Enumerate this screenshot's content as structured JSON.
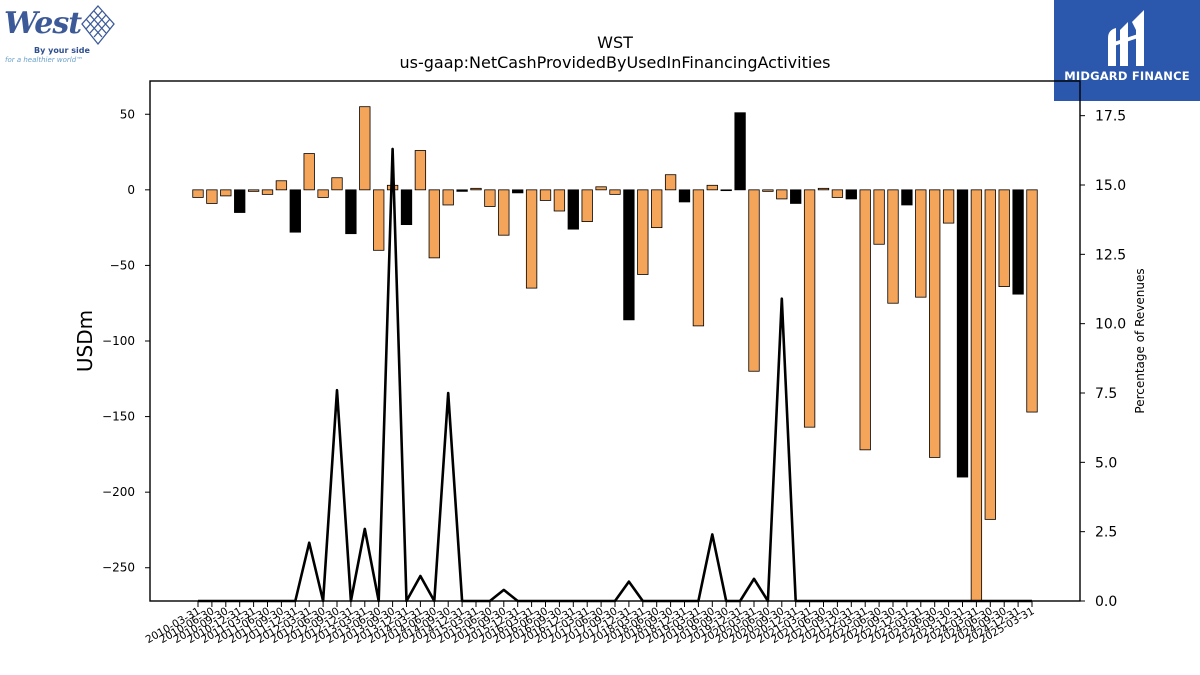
{
  "logos": {
    "west": {
      "word": "West",
      "tagline1": "By your side",
      "tagline2": "for a healthier world™"
    },
    "midgard": {
      "word": "MIDGARD FINANCE"
    }
  },
  "colors": {
    "positive_bar": "#f5a55a",
    "negative_bar": "#000000",
    "line": "#000000",
    "midgard_bg": "#2b57ad"
  },
  "chart_data": {
    "type": "bar",
    "title": "WST",
    "subtitle": "us-gaap:NetCashProvidedByUsedInFinancingActivities",
    "ylabel": "USDm",
    "y2label": "Percentage of Revenues",
    "ylim": [
      -272,
      72
    ],
    "y2lim": [
      0,
      18.75
    ],
    "yticks": [
      50,
      0,
      -50,
      -100,
      -150,
      -200,
      -250
    ],
    "ytick_labels": [
      "50",
      "0",
      "−50",
      "−100",
      "−150",
      "−200",
      "−250"
    ],
    "y2ticks": [
      0,
      2.5,
      5,
      7.5,
      10,
      12.5,
      15,
      17.5
    ],
    "y2tick_labels": [
      "0.0",
      "2.5",
      "5.0",
      "7.5",
      "10.0",
      "12.5",
      "15.0",
      "17.5"
    ],
    "xtick_labels": [
      "2010-03-31",
      "2010-06-30",
      "2010-09-30",
      "2010-12-31",
      "2011-03-31",
      "2011-06-30",
      "2011-09-30",
      "2011-12-31",
      "2012-03-31",
      "2012-06-30",
      "2012-09-30",
      "2012-12-31",
      "2013-03-31",
      "2013-06-30",
      "2013-09-30",
      "2013-12-31",
      "2014-03-31",
      "2014-06-30",
      "2014-09-30",
      "2014-12-31",
      "2015-03-31",
      "2015-06-30",
      "2015-09-30",
      "2015-12-31",
      "2016-03-31",
      "2016-06-30",
      "2016-09-30",
      "2016-12-31",
      "2017-03-31",
      "2017-06-30",
      "2017-09-30",
      "2017-12-31",
      "2018-03-31",
      "2018-06-30",
      "2018-09-30",
      "2018-12-31",
      "2019-03-31",
      "2019-06-30",
      "2019-09-30",
      "2019-12-31",
      "2020-03-31",
      "2020-06-30",
      "2020-09-30",
      "2020-12-31",
      "2021-03-31",
      "2021-06-30",
      "2021-09-30",
      "2021-12-31",
      "2022-03-31",
      "2022-06-30",
      "2022-09-30",
      "2022-12-31",
      "2023-03-31",
      "2023-06-30",
      "2023-09-30",
      "2023-12-31",
      "2024-03-31",
      "2024-06-30",
      "2024-09-30",
      "2024-12-31",
      "2025-03-31"
    ],
    "values": [
      -5,
      -9,
      -4,
      -15,
      -1,
      -3,
      6,
      -28,
      24,
      -5,
      8,
      -29,
      55,
      -40,
      3,
      -23,
      26,
      -45,
      -10,
      -1,
      1,
      -11,
      -30,
      -2,
      -65,
      -7,
      -14,
      -26,
      -21,
      2,
      -3,
      -86,
      -56,
      -25,
      10,
      -8,
      -90,
      3,
      0,
      51,
      -120,
      -1,
      -6,
      -9,
      -157,
      1,
      -5,
      -6,
      -172,
      -36,
      -75,
      -10,
      -71,
      -177,
      -22,
      -190,
      -272,
      -218,
      -64,
      -69,
      -147
    ],
    "percentage_of_revenues": [
      0,
      0,
      0,
      0,
      0,
      0,
      0.0,
      0,
      2.1,
      0,
      7.6,
      0,
      2.6,
      0,
      16.3,
      0,
      0.9,
      0,
      7.5,
      0,
      0,
      0,
      0.4,
      0,
      0,
      0,
      0,
      0,
      0,
      0,
      0,
      0.7,
      0,
      0,
      0,
      0,
      0,
      2.4,
      0,
      0,
      0.8,
      0,
      10.9,
      0,
      0,
      0,
      0,
      0,
      0,
      0,
      0,
      0,
      0,
      0,
      0,
      0,
      0,
      0,
      0,
      0,
      0
    ]
  }
}
